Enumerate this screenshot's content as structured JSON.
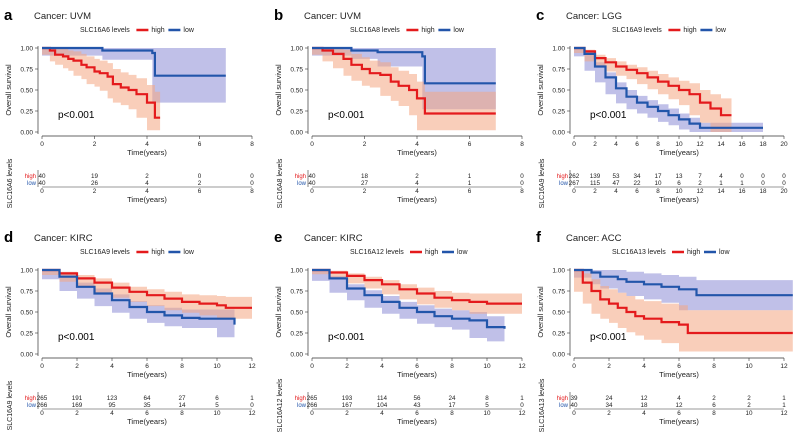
{
  "colors": {
    "high": "#e41a1c",
    "low": "#2255aa",
    "high_fill": "#f4a582",
    "low_fill": "#8c8cd6",
    "text": "#222222"
  },
  "chart_data": [
    {
      "type": "line",
      "letter": "a",
      "title": "Cancer: UVM",
      "legend_title": "SLC16A6 levels",
      "series_names": [
        "high",
        "low"
      ],
      "xlabel": "Time(years)",
      "ylabel": "Overall survival",
      "xlim": [
        0,
        8
      ],
      "xticks": [
        0,
        2,
        4,
        6,
        8
      ],
      "ylim": [
        0,
        1
      ],
      "yticks": [
        0.0,
        0.25,
        0.5,
        0.75,
        1.0
      ],
      "ytick_labels": [
        "0.00",
        "0.25",
        "0.50",
        "0.75",
        "1.00"
      ],
      "pvalue": "p<0.001",
      "risk_ylabel": "SLC16A6 levels",
      "risk_table": {
        "high": [
          "40",
          "19",
          "2",
          "0",
          "0"
        ],
        "low": [
          "40",
          "26",
          "4",
          "2",
          "0"
        ]
      },
      "series": [
        {
          "name": "high",
          "x": [
            0,
            0.3,
            0.5,
            0.8,
            1.0,
            1.2,
            1.5,
            1.7,
            2.0,
            2.2,
            2.5,
            2.7,
            3.0,
            3.3,
            3.6,
            4.0,
            4.3,
            4.5
          ],
          "y": [
            1.0,
            0.97,
            0.92,
            0.9,
            0.87,
            0.85,
            0.8,
            0.77,
            0.72,
            0.7,
            0.66,
            0.57,
            0.53,
            0.5,
            0.45,
            0.35,
            0.17,
            0.17
          ],
          "ci_upper": [
            1.0,
            1.0,
            1.0,
            0.99,
            0.97,
            0.96,
            0.93,
            0.9,
            0.87,
            0.85,
            0.82,
            0.75,
            0.71,
            0.68,
            0.64,
            0.56,
            0.48,
            0.48
          ],
          "ci_lower": [
            1.0,
            0.92,
            0.84,
            0.8,
            0.76,
            0.73,
            0.67,
            0.63,
            0.57,
            0.54,
            0.49,
            0.4,
            0.35,
            0.32,
            0.27,
            0.17,
            0.02,
            0.02
          ]
        },
        {
          "name": "low",
          "x": [
            0,
            2.3,
            4.2,
            4.3,
            6.0,
            7.0
          ],
          "y": [
            1.0,
            0.97,
            0.94,
            0.67,
            0.67,
            0.67
          ],
          "ci_upper": [
            1.0,
            1.0,
            1.0,
            1.0,
            1.0,
            1.0
          ],
          "ci_lower": [
            1.0,
            0.91,
            0.86,
            0.35,
            0.35,
            0.35
          ]
        }
      ]
    },
    {
      "type": "line",
      "letter": "b",
      "title": "Cancer: UVM",
      "legend_title": "SLC16A8 levels",
      "series_names": [
        "high",
        "low"
      ],
      "xlabel": "Time(years)",
      "ylabel": "Overall survival",
      "xlim": [
        0,
        8
      ],
      "xticks": [
        0,
        2,
        4,
        6,
        8
      ],
      "ylim": [
        0,
        1
      ],
      "yticks": [
        0.0,
        0.25,
        0.5,
        0.75,
        1.0
      ],
      "ytick_labels": [
        "0.00",
        "0.25",
        "0.50",
        "0.75",
        "1.00"
      ],
      "pvalue": "p<0.001",
      "risk_ylabel": "SLC16A8 levels",
      "risk_table": {
        "high": [
          "40",
          "18",
          "2",
          "1",
          "0"
        ],
        "low": [
          "40",
          "27",
          "4",
          "1",
          "0"
        ]
      },
      "series": [
        {
          "name": "high",
          "x": [
            0,
            0.4,
            0.8,
            1.2,
            1.5,
            1.9,
            2.2,
            2.6,
            3.0,
            3.3,
            3.7,
            4.0,
            4.3,
            7.0
          ],
          "y": [
            1.0,
            0.97,
            0.93,
            0.87,
            0.8,
            0.75,
            0.7,
            0.68,
            0.6,
            0.55,
            0.5,
            0.4,
            0.22,
            0.22
          ],
          "ci_upper": [
            1.0,
            1.0,
            1.0,
            0.98,
            0.93,
            0.89,
            0.85,
            0.83,
            0.77,
            0.73,
            0.69,
            0.6,
            0.48,
            0.48
          ],
          "ci_lower": [
            1.0,
            0.92,
            0.84,
            0.76,
            0.67,
            0.61,
            0.55,
            0.53,
            0.43,
            0.37,
            0.31,
            0.2,
            0.02,
            0.02
          ]
        },
        {
          "name": "low",
          "x": [
            0,
            1.5,
            2.5,
            4.2,
            4.3,
            7.0
          ],
          "y": [
            1.0,
            0.97,
            0.95,
            0.9,
            0.58,
            0.58
          ],
          "ci_upper": [
            1.0,
            1.0,
            1.0,
            1.0,
            1.0,
            1.0
          ],
          "ci_lower": [
            1.0,
            0.91,
            0.87,
            0.78,
            0.27,
            0.27
          ]
        }
      ]
    },
    {
      "type": "line",
      "letter": "c",
      "title": "Cancer: LGG",
      "legend_title": "SLC16A9 levels",
      "series_names": [
        "high",
        "low"
      ],
      "xlabel": "Time(years)",
      "ylabel": "Overall survival",
      "xlim": [
        0,
        20
      ],
      "xticks": [
        0,
        2,
        4,
        6,
        8,
        10,
        12,
        14,
        16,
        18,
        20
      ],
      "ylim": [
        0,
        1
      ],
      "yticks": [
        0.0,
        0.25,
        0.5,
        0.75,
        1.0
      ],
      "ytick_labels": [
        "0.00",
        "0.25",
        "0.50",
        "0.75",
        "1.00"
      ],
      "pvalue": "p<0.001",
      "risk_ylabel": "SLC16A9 levels",
      "risk_table": {
        "high": [
          "262",
          "139",
          "53",
          "34",
          "17",
          "13",
          "7",
          "4",
          "0",
          "0",
          "0"
        ],
        "low": [
          "267",
          "115",
          "47",
          "22",
          "10",
          "6",
          "2",
          "1",
          "1",
          "0",
          "0"
        ]
      },
      "series": [
        {
          "name": "high",
          "x": [
            0,
            1,
            2,
            3,
            4,
            5,
            6,
            7,
            8,
            9,
            10,
            11,
            12,
            13,
            14,
            15
          ],
          "y": [
            1.0,
            0.96,
            0.88,
            0.83,
            0.78,
            0.74,
            0.7,
            0.65,
            0.6,
            0.55,
            0.5,
            0.45,
            0.35,
            0.28,
            0.2,
            0.2
          ],
          "ci_upper": [
            1.0,
            0.98,
            0.92,
            0.88,
            0.84,
            0.8,
            0.77,
            0.73,
            0.69,
            0.65,
            0.61,
            0.58,
            0.5,
            0.45,
            0.4,
            0.4
          ],
          "ci_lower": [
            1.0,
            0.94,
            0.84,
            0.78,
            0.72,
            0.67,
            0.63,
            0.57,
            0.51,
            0.45,
            0.39,
            0.32,
            0.2,
            0.11,
            0.0,
            0.0
          ]
        },
        {
          "name": "low",
          "x": [
            0,
            1,
            2,
            3,
            4,
            5,
            6,
            7,
            8,
            9,
            10,
            11,
            12,
            14,
            16,
            18
          ],
          "y": [
            1.0,
            0.93,
            0.78,
            0.65,
            0.52,
            0.42,
            0.35,
            0.3,
            0.25,
            0.2,
            0.15,
            0.1,
            0.05,
            0.05,
            0.05,
            0.05
          ],
          "ci_upper": [
            1.0,
            0.96,
            0.83,
            0.71,
            0.59,
            0.5,
            0.43,
            0.38,
            0.33,
            0.28,
            0.22,
            0.17,
            0.11,
            0.11,
            0.11,
            0.11
          ],
          "ci_lower": [
            1.0,
            0.9,
            0.73,
            0.59,
            0.45,
            0.34,
            0.27,
            0.22,
            0.17,
            0.12,
            0.08,
            0.03,
            0.0,
            0.0,
            0.0,
            0.0
          ]
        }
      ]
    },
    {
      "type": "line",
      "letter": "d",
      "title": "Cancer: KIRC",
      "legend_title": "SLC16A9 levels",
      "series_names": [
        "high",
        "low"
      ],
      "xlabel": "Time(years)",
      "ylabel": "Overall survival",
      "xlim": [
        0,
        12
      ],
      "xticks": [
        0,
        2,
        4,
        6,
        8,
        10,
        12
      ],
      "ylim": [
        0,
        1
      ],
      "yticks": [
        0.0,
        0.25,
        0.5,
        0.75,
        1.0
      ],
      "ytick_labels": [
        "0.00",
        "0.25",
        "0.50",
        "0.75",
        "1.00"
      ],
      "pvalue": "p<0.001",
      "risk_ylabel": "SLC16A9 levels",
      "risk_table": {
        "high": [
          "265",
          "191",
          "123",
          "64",
          "27",
          "6",
          "1"
        ],
        "low": [
          "266",
          "169",
          "95",
          "35",
          "14",
          "5",
          "0"
        ]
      },
      "series": [
        {
          "name": "high",
          "x": [
            0,
            1,
            2,
            3,
            4,
            5,
            6,
            7,
            8,
            9,
            10,
            10.5,
            12
          ],
          "y": [
            1.0,
            0.96,
            0.9,
            0.85,
            0.79,
            0.74,
            0.7,
            0.66,
            0.62,
            0.6,
            0.58,
            0.55,
            0.55
          ],
          "ci_upper": [
            1.0,
            0.98,
            0.94,
            0.9,
            0.85,
            0.8,
            0.77,
            0.74,
            0.71,
            0.7,
            0.69,
            0.68,
            0.68
          ],
          "ci_lower": [
            1.0,
            0.94,
            0.86,
            0.8,
            0.73,
            0.67,
            0.62,
            0.57,
            0.52,
            0.49,
            0.46,
            0.42,
            0.42
          ]
        },
        {
          "name": "low",
          "x": [
            0,
            1,
            2,
            3,
            4,
            5,
            6,
            7,
            8,
            9,
            10,
            11
          ],
          "y": [
            1.0,
            0.92,
            0.8,
            0.72,
            0.64,
            0.56,
            0.5,
            0.46,
            0.43,
            0.42,
            0.42,
            0.35
          ],
          "ci_upper": [
            1.0,
            0.95,
            0.85,
            0.78,
            0.71,
            0.63,
            0.58,
            0.55,
            0.53,
            0.53,
            0.53,
            0.5
          ],
          "ci_lower": [
            1.0,
            0.89,
            0.75,
            0.66,
            0.57,
            0.49,
            0.42,
            0.37,
            0.33,
            0.31,
            0.31,
            0.2
          ]
        }
      ]
    },
    {
      "type": "line",
      "letter": "e",
      "title": "Cancer: KIRC",
      "legend_title": "SLC16A12 levels",
      "series_names": [
        "high",
        "low"
      ],
      "xlabel": "Time(years)",
      "ylabel": "Overall survival",
      "xlim": [
        0,
        12
      ],
      "xticks": [
        0,
        2,
        4,
        6,
        8,
        10,
        12
      ],
      "ylim": [
        0,
        1
      ],
      "yticks": [
        0.0,
        0.25,
        0.5,
        0.75,
        1.0
      ],
      "ytick_labels": [
        "0.00",
        "0.25",
        "0.50",
        "0.75",
        "1.00"
      ],
      "pvalue": "p<0.001",
      "risk_ylabel": "SLC16A12 levels",
      "risk_table": {
        "high": [
          "265",
          "193",
          "114",
          "56",
          "24",
          "8",
          "1"
        ],
        "low": [
          "266",
          "167",
          "104",
          "43",
          "17",
          "5",
          "0"
        ]
      },
      "series": [
        {
          "name": "high",
          "x": [
            0,
            1,
            2,
            3,
            4,
            5,
            6,
            7,
            8,
            9,
            10,
            12
          ],
          "y": [
            1.0,
            0.97,
            0.93,
            0.88,
            0.83,
            0.77,
            0.72,
            0.67,
            0.64,
            0.62,
            0.6,
            0.6
          ],
          "ci_upper": [
            1.0,
            0.99,
            0.96,
            0.92,
            0.88,
            0.83,
            0.79,
            0.75,
            0.73,
            0.72,
            0.72,
            0.72
          ],
          "ci_lower": [
            1.0,
            0.95,
            0.9,
            0.84,
            0.78,
            0.71,
            0.65,
            0.59,
            0.55,
            0.52,
            0.48,
            0.48
          ]
        },
        {
          "name": "low",
          "x": [
            0,
            1,
            2,
            3,
            4,
            5,
            6,
            7,
            8,
            9,
            10,
            11
          ],
          "y": [
            1.0,
            0.9,
            0.78,
            0.7,
            0.62,
            0.55,
            0.5,
            0.45,
            0.42,
            0.4,
            0.32,
            0.3
          ],
          "ci_upper": [
            1.0,
            0.93,
            0.83,
            0.76,
            0.69,
            0.62,
            0.58,
            0.54,
            0.52,
            0.5,
            0.45,
            0.45
          ],
          "ci_lower": [
            1.0,
            0.87,
            0.73,
            0.64,
            0.55,
            0.48,
            0.42,
            0.36,
            0.32,
            0.29,
            0.19,
            0.15
          ]
        }
      ]
    },
    {
      "type": "line",
      "letter": "f",
      "title": "Cancer: ACC",
      "legend_title": "SLC16A13 levels",
      "series_names": [
        "high",
        "low"
      ],
      "xlabel": "Time(years)",
      "ylabel": "Overall survival",
      "xlim": [
        0,
        12
      ],
      "xticks": [
        0,
        2,
        4,
        6,
        8,
        10,
        12
      ],
      "ylim": [
        0,
        1
      ],
      "yticks": [
        0.0,
        0.25,
        0.5,
        0.75,
        1.0
      ],
      "ytick_labels": [
        "0.00",
        "0.25",
        "0.50",
        "0.75",
        "1.00"
      ],
      "pvalue": "p<0.001",
      "risk_ylabel": "SLC16A13 levels",
      "risk_table": {
        "high": [
          "39",
          "24",
          "12",
          "4",
          "2",
          "2",
          "1"
        ],
        "low": [
          "40",
          "34",
          "18",
          "12",
          "6",
          "2",
          "1"
        ]
      },
      "series": [
        {
          "name": "high",
          "x": [
            0,
            0.5,
            1.0,
            1.5,
            2.0,
            2.5,
            3.0,
            3.5,
            4.0,
            5.0,
            6.0,
            6.5,
            12.5
          ],
          "y": [
            1.0,
            0.85,
            0.75,
            0.65,
            0.6,
            0.55,
            0.5,
            0.45,
            0.42,
            0.38,
            0.35,
            0.25,
            0.25
          ],
          "ci_upper": [
            1.0,
            0.96,
            0.89,
            0.81,
            0.77,
            0.73,
            0.69,
            0.65,
            0.63,
            0.6,
            0.58,
            0.52,
            0.52
          ],
          "ci_lower": [
            1.0,
            0.74,
            0.6,
            0.48,
            0.42,
            0.37,
            0.31,
            0.26,
            0.22,
            0.17,
            0.13,
            0.03,
            0.03
          ]
        },
        {
          "name": "low",
          "x": [
            0,
            1.0,
            1.5,
            2.5,
            3.0,
            4.0,
            5.0,
            6.0,
            7.0,
            12.5
          ],
          "y": [
            1.0,
            0.97,
            0.92,
            0.89,
            0.86,
            0.83,
            0.8,
            0.77,
            0.7,
            0.7
          ],
          "ci_upper": [
            1.0,
            1.0,
            1.0,
            1.0,
            0.98,
            0.96,
            0.94,
            0.92,
            0.88,
            0.88
          ],
          "ci_lower": [
            1.0,
            0.91,
            0.83,
            0.78,
            0.73,
            0.69,
            0.65,
            0.61,
            0.52,
            0.52
          ]
        }
      ]
    }
  ]
}
